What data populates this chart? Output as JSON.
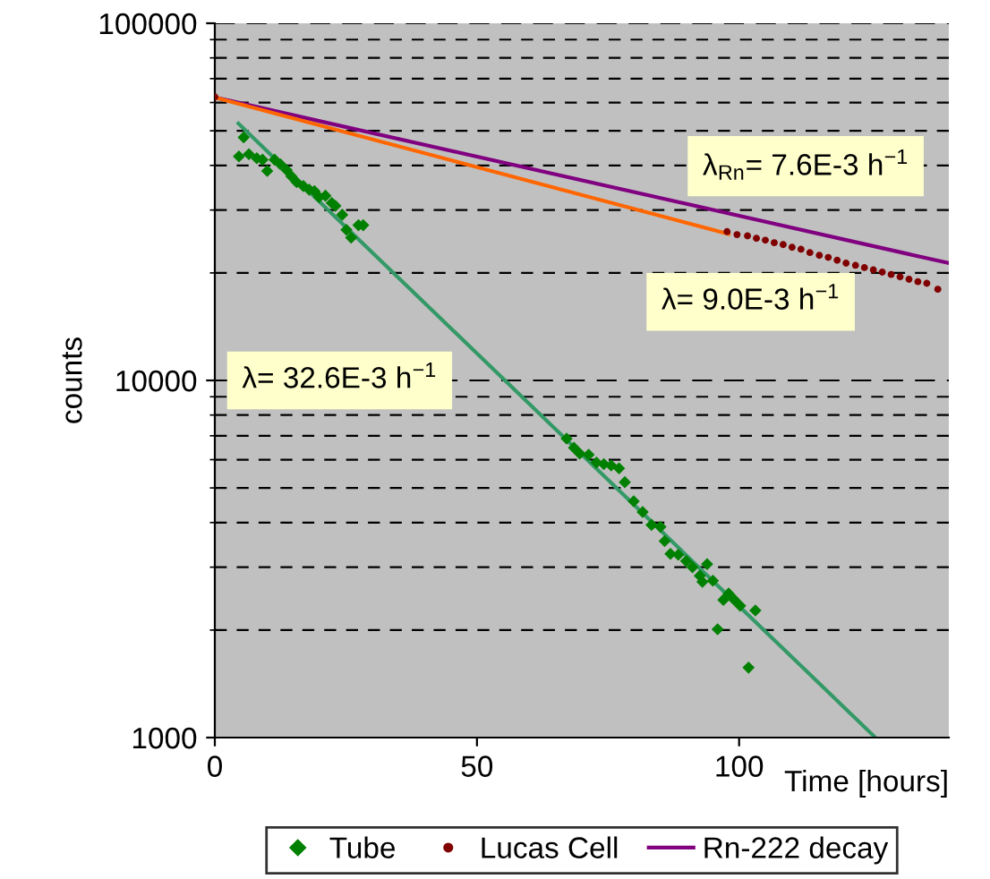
{
  "chart_data": {
    "type": "scatter",
    "ylabel": "counts",
    "xlabel": "Time [hours]",
    "log": "y",
    "xlim": [
      0,
      140
    ],
    "xticks": [
      0,
      50,
      100
    ],
    "ylim": [
      1000,
      100000
    ],
    "yticks": [
      1000,
      10000,
      100000
    ],
    "grid": "y",
    "legend": "bottom",
    "series": [
      {
        "name": "Tube",
        "marker": "diamond",
        "color": "#008000",
        "x": [
          4.6,
          5.5,
          6.5,
          8.0,
          9.1,
          10.0,
          11.4,
          12.5,
          13.7,
          14.6,
          15.6,
          16.9,
          18.0,
          19.0,
          19.9,
          21.1,
          22.3,
          23.0,
          24.3,
          25.1,
          26.0,
          27.4,
          28.3,
          67.1,
          68.5,
          69.6,
          71.3,
          72.8,
          74.2,
          75.6,
          77.1,
          78.2,
          79.9,
          81.6,
          83.3,
          85.0,
          85.8,
          86.9,
          88.4,
          89.9,
          91.1,
          92.5,
          93.0,
          93.9,
          95.0,
          95.9,
          97.0,
          98.0,
          99.1,
          100.2,
          101.8,
          103.1
        ],
        "values": [
          42400,
          47900,
          43000,
          41900,
          41500,
          38600,
          41500,
          40300,
          38800,
          37300,
          35900,
          35000,
          34200,
          33900,
          32600,
          32900,
          31400,
          30800,
          29100,
          26400,
          25100,
          27200,
          27200,
          6870,
          6480,
          6240,
          6190,
          5890,
          5830,
          5780,
          5670,
          5190,
          4590,
          4280,
          3940,
          3890,
          3550,
          3270,
          3250,
          3120,
          3000,
          2840,
          2730,
          3060,
          2750,
          2010,
          2430,
          2530,
          2430,
          2340,
          1570,
          2270
        ]
      },
      {
        "name": "Lucas Cell",
        "marker": "circle",
        "color": "#800000",
        "x": [
          0,
          97.7,
          99.6,
          101.6,
          103.3,
          105.0,
          106.7,
          108.4,
          110.1,
          111.8,
          113.5,
          115.3,
          117.0,
          118.7,
          120.4,
          122.2,
          123.9,
          125.6,
          127.3,
          129.0,
          130.7,
          132.4,
          134.1,
          135.8,
          137.9
        ],
        "values": [
          62200,
          26100,
          25600,
          25400,
          25000,
          24700,
          24300,
          24000,
          23600,
          23300,
          22800,
          22400,
          22100,
          21700,
          21300,
          21000,
          20700,
          20400,
          20100,
          19800,
          19500,
          19200,
          18900,
          18700,
          18000
        ]
      },
      {
        "name": "Rn-222 decay",
        "type": "line",
        "color": "#800080",
        "x": [
          0,
          140
        ],
        "values": [
          62000,
          21300
        ]
      },
      {
        "type": "line",
        "color": "#ff6600",
        "x": [
          0,
          98
        ],
        "values": [
          62000,
          25700
        ]
      },
      {
        "type": "line",
        "color": "#339966",
        "x": [
          4.5,
          126
        ],
        "values": [
          52400,
          1000
        ]
      }
    ],
    "annotations": [
      "λ$_{Rn}$= 7.6E-3 h$^{−1}$",
      "λ= 9.0E-3 h$^{−1}$",
      "λ= 32.6E-3 h$^{−1}$"
    ]
  }
}
